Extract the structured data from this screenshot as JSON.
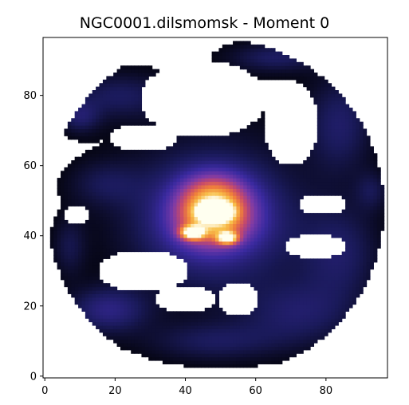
{
  "chart_data": {
    "type": "heatmap",
    "title": "NGC0001.dilsmomsk - Moment 0",
    "xlabel": "",
    "ylabel": "",
    "xlim": [
      -0.5,
      97.5
    ],
    "ylim": [
      -0.5,
      96.5
    ],
    "xticks": [
      0,
      20,
      40,
      60,
      80
    ],
    "yticks": [
      0,
      20,
      40,
      60,
      80
    ],
    "grid": false,
    "colormap": "CMRmap",
    "colormap_stops": [
      "#000000",
      "#1a1a5a",
      "#3a2aa0",
      "#7a3aa8",
      "#c84a6a",
      "#f0803a",
      "#f8c04a",
      "#fffff0"
    ],
    "value_range": [
      0,
      1
    ],
    "components": [
      {
        "name": "central-core",
        "shape": "ellipse",
        "cx": 48,
        "cy": 45,
        "rx": 22,
        "ry": 18,
        "peak": 0.3
      },
      {
        "name": "central-glow",
        "shape": "ellipse",
        "cx": 48,
        "cy": 45,
        "rx": 11,
        "ry": 8,
        "peak": 0.55
      },
      {
        "name": "bright-knot-main",
        "shape": "ellipse",
        "cx": 48.5,
        "cy": 47,
        "rx": 4.5,
        "ry": 2.5,
        "peak": 1.0
      },
      {
        "name": "bright-knot-left",
        "shape": "ellipse",
        "cx": 42,
        "cy": 41,
        "rx": 3.5,
        "ry": 2,
        "peak": 0.75
      },
      {
        "name": "bright-knot-right",
        "shape": "ellipse",
        "cx": 52,
        "cy": 39.5,
        "rx": 3,
        "ry": 1.8,
        "peak": 0.7
      },
      {
        "name": "central-extension",
        "shape": "ellipse",
        "cx": 48,
        "cy": 52,
        "rx": 10,
        "ry": 7,
        "peak": 0.35
      },
      {
        "name": "north-arc",
        "shape": "ellipse",
        "cx": 66,
        "cy": 91,
        "rx": 14,
        "ry": 4.5,
        "peak": 0.14
      },
      {
        "name": "northwest-arm",
        "shape": "ellipse",
        "cx": 21,
        "cy": 80,
        "rx": 16,
        "ry": 7,
        "peak": 0.13
      },
      {
        "name": "northwest-clump",
        "shape": "ellipse",
        "cx": 10,
        "cy": 74,
        "rx": 6,
        "ry": 5,
        "peak": 0.14
      },
      {
        "name": "northeast-arm",
        "shape": "ellipse",
        "cx": 84,
        "cy": 72,
        "rx": 10,
        "ry": 15,
        "peak": 0.15
      },
      {
        "name": "east-edge",
        "shape": "ellipse",
        "cx": 93,
        "cy": 53,
        "rx": 5,
        "ry": 6,
        "peak": 0.1
      },
      {
        "name": "east-lobe",
        "shape": "ellipse",
        "cx": 84,
        "cy": 35,
        "rx": 12,
        "ry": 15,
        "peak": 0.14
      },
      {
        "name": "southeast-arc",
        "shape": "ellipse",
        "cx": 72,
        "cy": 18,
        "rx": 17,
        "ry": 10,
        "peak": 0.14
      },
      {
        "name": "south-arc",
        "shape": "ellipse",
        "cx": 48,
        "cy": 10,
        "rx": 20,
        "ry": 6,
        "peak": 0.12
      },
      {
        "name": "southwest-lobe",
        "shape": "ellipse",
        "cx": 18,
        "cy": 19,
        "rx": 12,
        "ry": 7,
        "peak": 0.2
      },
      {
        "name": "west-edge",
        "shape": "ellipse",
        "cx": 7,
        "cy": 37,
        "rx": 5,
        "ry": 9,
        "peak": 0.1
      },
      {
        "name": "west-band",
        "shape": "ellipse",
        "cx": 17,
        "cy": 55,
        "rx": 11,
        "ry": 7,
        "peak": 0.1
      },
      {
        "name": "ring-fill",
        "shape": "ellipse",
        "cx": 48,
        "cy": 48,
        "rx": 45,
        "ry": 46,
        "peak": 0.05
      },
      {
        "name": "hole-north-center",
        "shape": "hole",
        "cx": 45,
        "cy": 79,
        "rx": 18,
        "ry": 11
      },
      {
        "name": "hole-north-left",
        "shape": "hole",
        "cx": 28,
        "cy": 68,
        "rx": 10,
        "ry": 4
      },
      {
        "name": "hole-northeast",
        "shape": "hole",
        "cx": 70,
        "cy": 72,
        "rx": 8,
        "ry": 12
      },
      {
        "name": "hole-east-slot",
        "shape": "hole",
        "cx": 79,
        "cy": 49,
        "rx": 7,
        "ry": 3
      },
      {
        "name": "hole-east-slot-2",
        "shape": "hole",
        "cx": 77,
        "cy": 37,
        "rx": 9,
        "ry": 3.5
      },
      {
        "name": "hole-southwest",
        "shape": "hole",
        "cx": 28,
        "cy": 30,
        "rx": 13,
        "ry": 6
      },
      {
        "name": "hole-southwest-gap",
        "shape": "hole",
        "cx": 40,
        "cy": 22,
        "rx": 9,
        "ry": 4
      },
      {
        "name": "hole-west-gap",
        "shape": "hole",
        "cx": 9,
        "cy": 46,
        "rx": 4,
        "ry": 3
      },
      {
        "name": "hole-south-notch",
        "shape": "hole",
        "cx": 55,
        "cy": 22,
        "rx": 6,
        "ry": 5
      }
    ],
    "mask": {
      "shape": "circle",
      "cx": 48.5,
      "cy": 48,
      "r": 48
    }
  }
}
